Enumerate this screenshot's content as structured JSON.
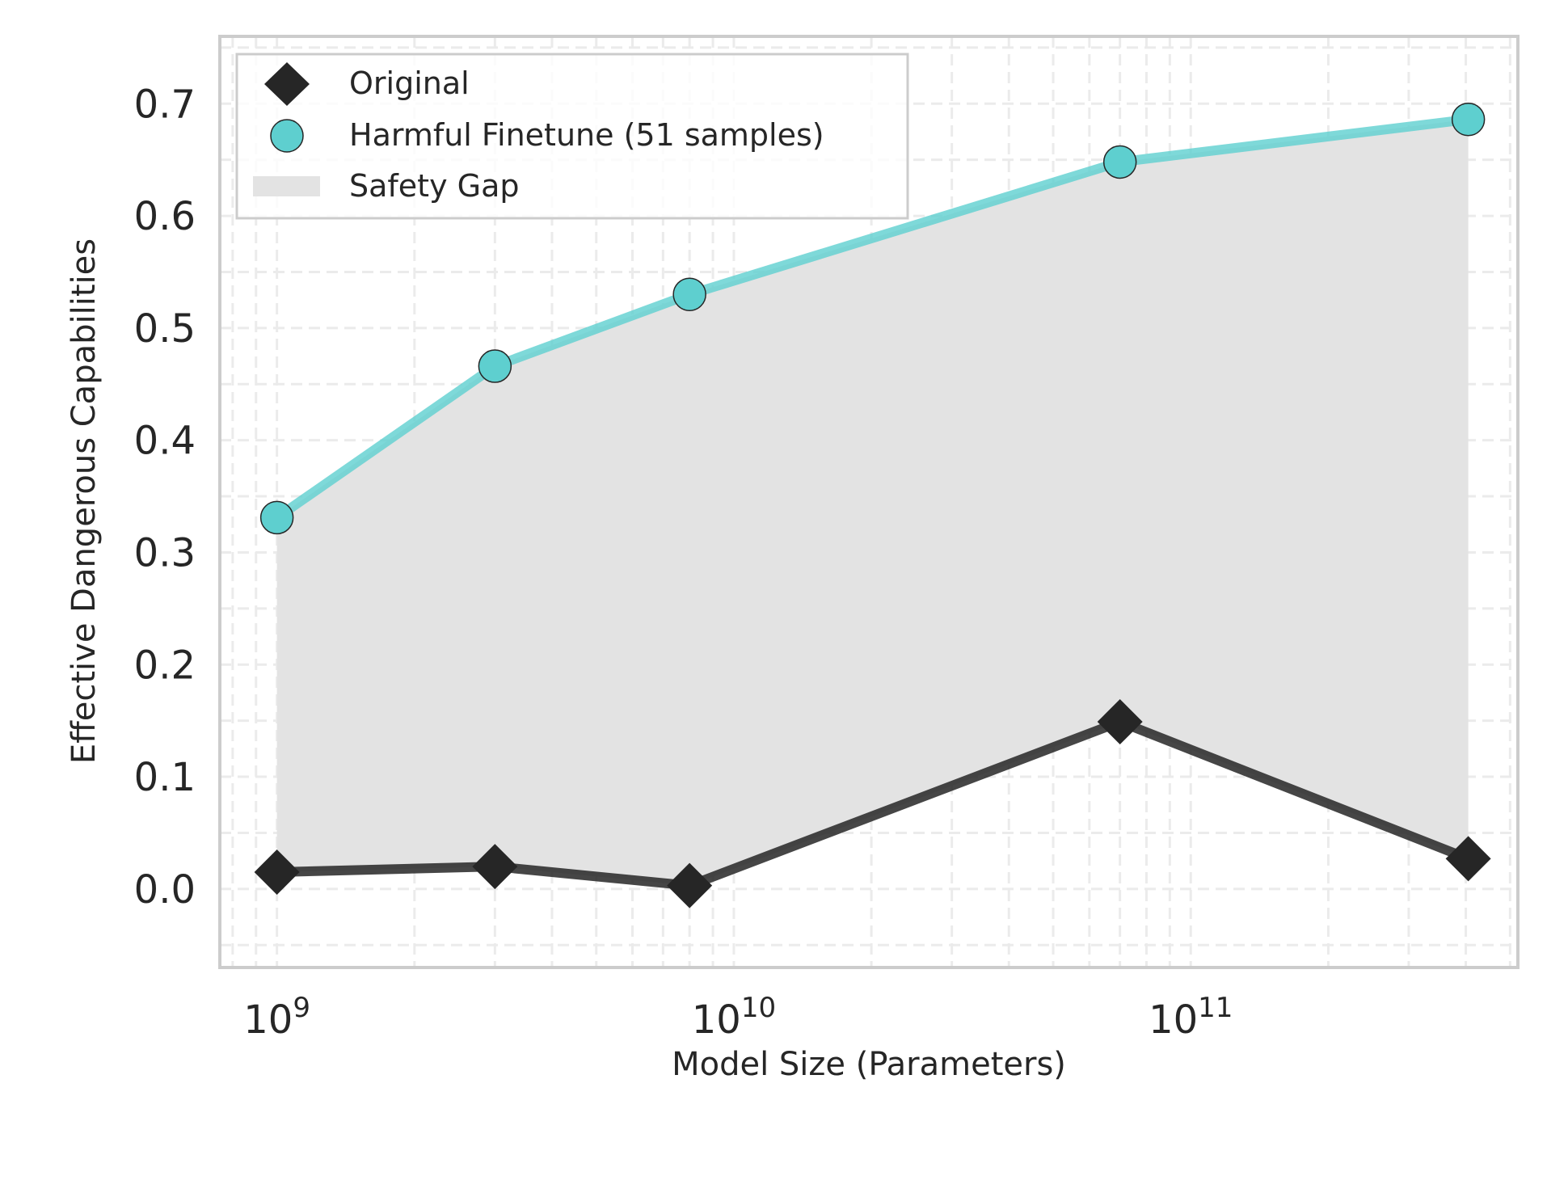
{
  "chart_data": {
    "type": "line",
    "xlabel": "Model Size (Parameters)",
    "ylabel": "Effective Dangerous Capabilities",
    "x_scale": "log",
    "xlim": [
      750000000.0,
      520000000000.0
    ],
    "ylim": [
      -0.07,
      0.76
    ],
    "x_ticks": [
      {
        "value": 1000000000.0,
        "base": "10",
        "exp": "9"
      },
      {
        "value": 10000000000.0,
        "base": "10",
        "exp": "10"
      },
      {
        "value": 100000000000.0,
        "base": "10",
        "exp": "11"
      }
    ],
    "y_ticks": [
      {
        "value": 0.0,
        "label": "0.0"
      },
      {
        "value": 0.1,
        "label": "0.1"
      },
      {
        "value": 0.2,
        "label": "0.2"
      },
      {
        "value": 0.3,
        "label": "0.3"
      },
      {
        "value": 0.4,
        "label": "0.4"
      },
      {
        "value": 0.5,
        "label": "0.5"
      },
      {
        "value": 0.6,
        "label": "0.6"
      },
      {
        "value": 0.7,
        "label": "0.7"
      }
    ],
    "grid": true,
    "legend_position": "top-left",
    "x": [
      1000000000.0,
      3000000000.0,
      8000000000.0,
      70000000000.0,
      405000000000.0
    ],
    "series": [
      {
        "name": "Original",
        "marker": "diamond",
        "color": "#262626",
        "values": [
          0.015,
          0.02,
          0.003,
          0.149,
          0.027
        ]
      },
      {
        "name": "Harmful Finetune (51 samples)",
        "marker": "circle",
        "color": "#5ecfcf",
        "values": [
          0.331,
          0.466,
          0.53,
          0.648,
          0.686
        ]
      }
    ],
    "fill": {
      "name": "Safety Gap",
      "color": "#e3e3e3"
    }
  }
}
